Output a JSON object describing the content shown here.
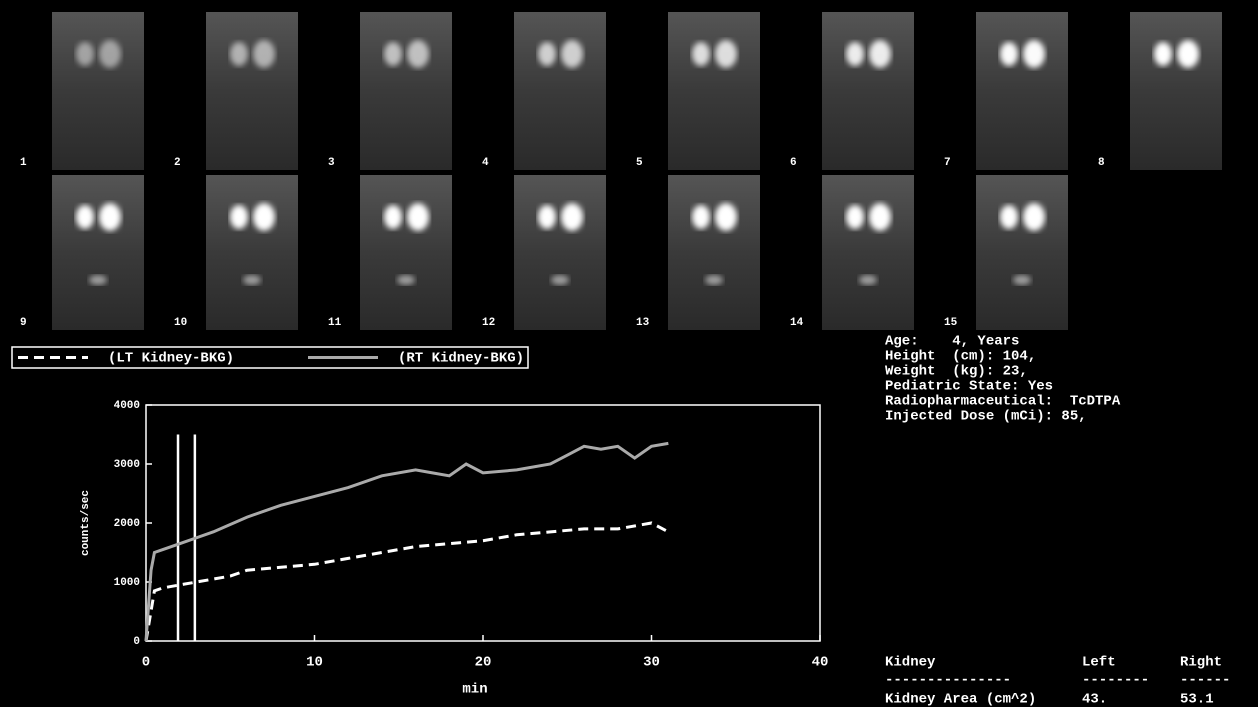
{
  "frames": [
    "1",
    "2",
    "3",
    "4",
    "5",
    "6",
    "7",
    "8",
    "9",
    "10",
    "11",
    "12",
    "13",
    "14",
    "15"
  ],
  "chart_data": {
    "type": "line",
    "x_label": "min",
    "y_label": "counts/sec",
    "xlim": [
      0,
      40
    ],
    "ylim": [
      0,
      4000
    ],
    "xticks": [
      0,
      10,
      20,
      30,
      40
    ],
    "yticks": [
      0,
      1000,
      2000,
      3000,
      4000
    ],
    "vertical_lines": [
      1.9,
      2.9
    ],
    "vertical_line_top": 3500,
    "series": [
      {
        "name": "(LT Kidney-BKG)",
        "color": "#ffffff",
        "line_style": "dashed",
        "x": [
          0,
          0.5,
          1,
          2,
          3,
          5,
          6,
          8,
          10,
          12,
          14,
          16,
          18,
          20,
          22,
          24,
          26,
          28,
          30,
          31
        ],
        "values": [
          0,
          850,
          900,
          950,
          1000,
          1100,
          1200,
          1250,
          1300,
          1400,
          1500,
          1600,
          1650,
          1700,
          1800,
          1850,
          1900,
          1900,
          2000,
          1850
        ]
      },
      {
        "name": "(RT Kidney-BKG)",
        "color": "#aaaaaa",
        "line_style": "solid",
        "x": [
          0,
          0.3,
          0.5,
          1,
          2,
          3,
          4,
          6,
          8,
          10,
          12,
          14,
          16,
          17,
          18,
          19,
          20,
          22,
          24,
          25,
          26,
          27,
          28,
          29,
          30,
          31
        ],
        "values": [
          0,
          1200,
          1500,
          1550,
          1650,
          1750,
          1850,
          2100,
          2300,
          2450,
          2600,
          2800,
          2900,
          2850,
          2800,
          3000,
          2850,
          2900,
          3000,
          3150,
          3300,
          3250,
          3300,
          3100,
          3300,
          3350
        ]
      }
    ]
  },
  "patient_info": [
    "Age:    4, Years",
    "Height  (cm): 104,",
    "Weight  (kg): 23,",
    "Pediatric State: Yes",
    "Radiopharmaceutical:  TcDTPA",
    "Injected Dose (mCi): 85,"
  ],
  "table": {
    "header": [
      "Kidney",
      "Left",
      "Right"
    ],
    "rows": [
      [
        "---------------",
        "--------",
        "------"
      ],
      [
        "Kidney Area (cm^2)",
        "43.",
        "53.1"
      ]
    ]
  }
}
